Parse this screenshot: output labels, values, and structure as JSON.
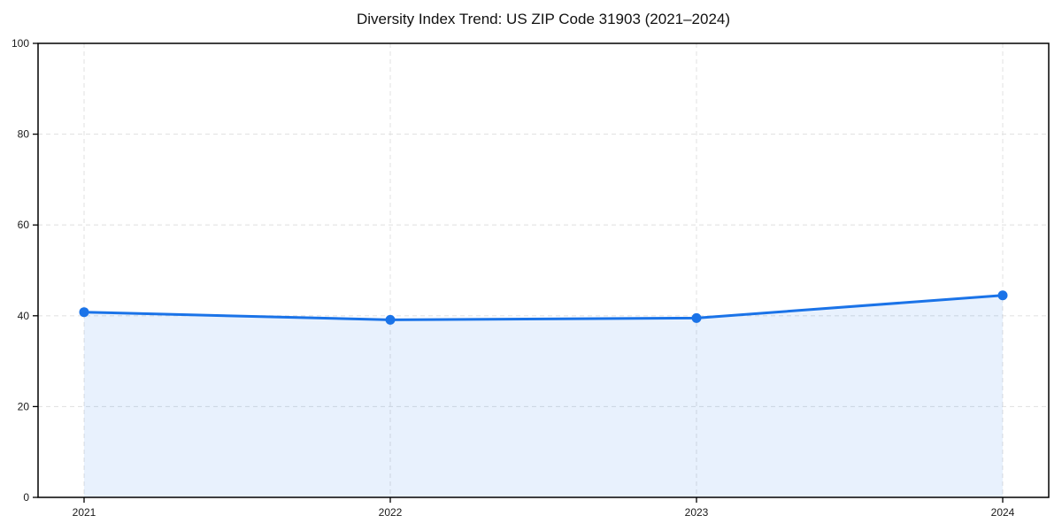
{
  "chart_data": {
    "type": "area",
    "title": "Diversity Index Trend: US ZIP Code 31903 (2021–2024)",
    "x": [
      "2021",
      "2022",
      "2023",
      "2024"
    ],
    "series": [
      {
        "name": "Diversity Index",
        "values": [
          40.8,
          39.1,
          39.5,
          44.5
        ]
      }
    ],
    "xlabel": "",
    "ylabel": "",
    "ylim": [
      0,
      100
    ],
    "yticks": [
      0,
      20,
      40,
      60,
      80,
      100
    ],
    "grid": true,
    "grid_style": "dashed",
    "legend": false,
    "colors": {
      "line": "#1a73e8",
      "marker": "#1a73e8",
      "fill": "rgba(26,115,232,0.10)",
      "grid": "#e3e3e3",
      "frame": "#000000",
      "tick_label": "#1a1a1a",
      "title": "#111111"
    }
  }
}
